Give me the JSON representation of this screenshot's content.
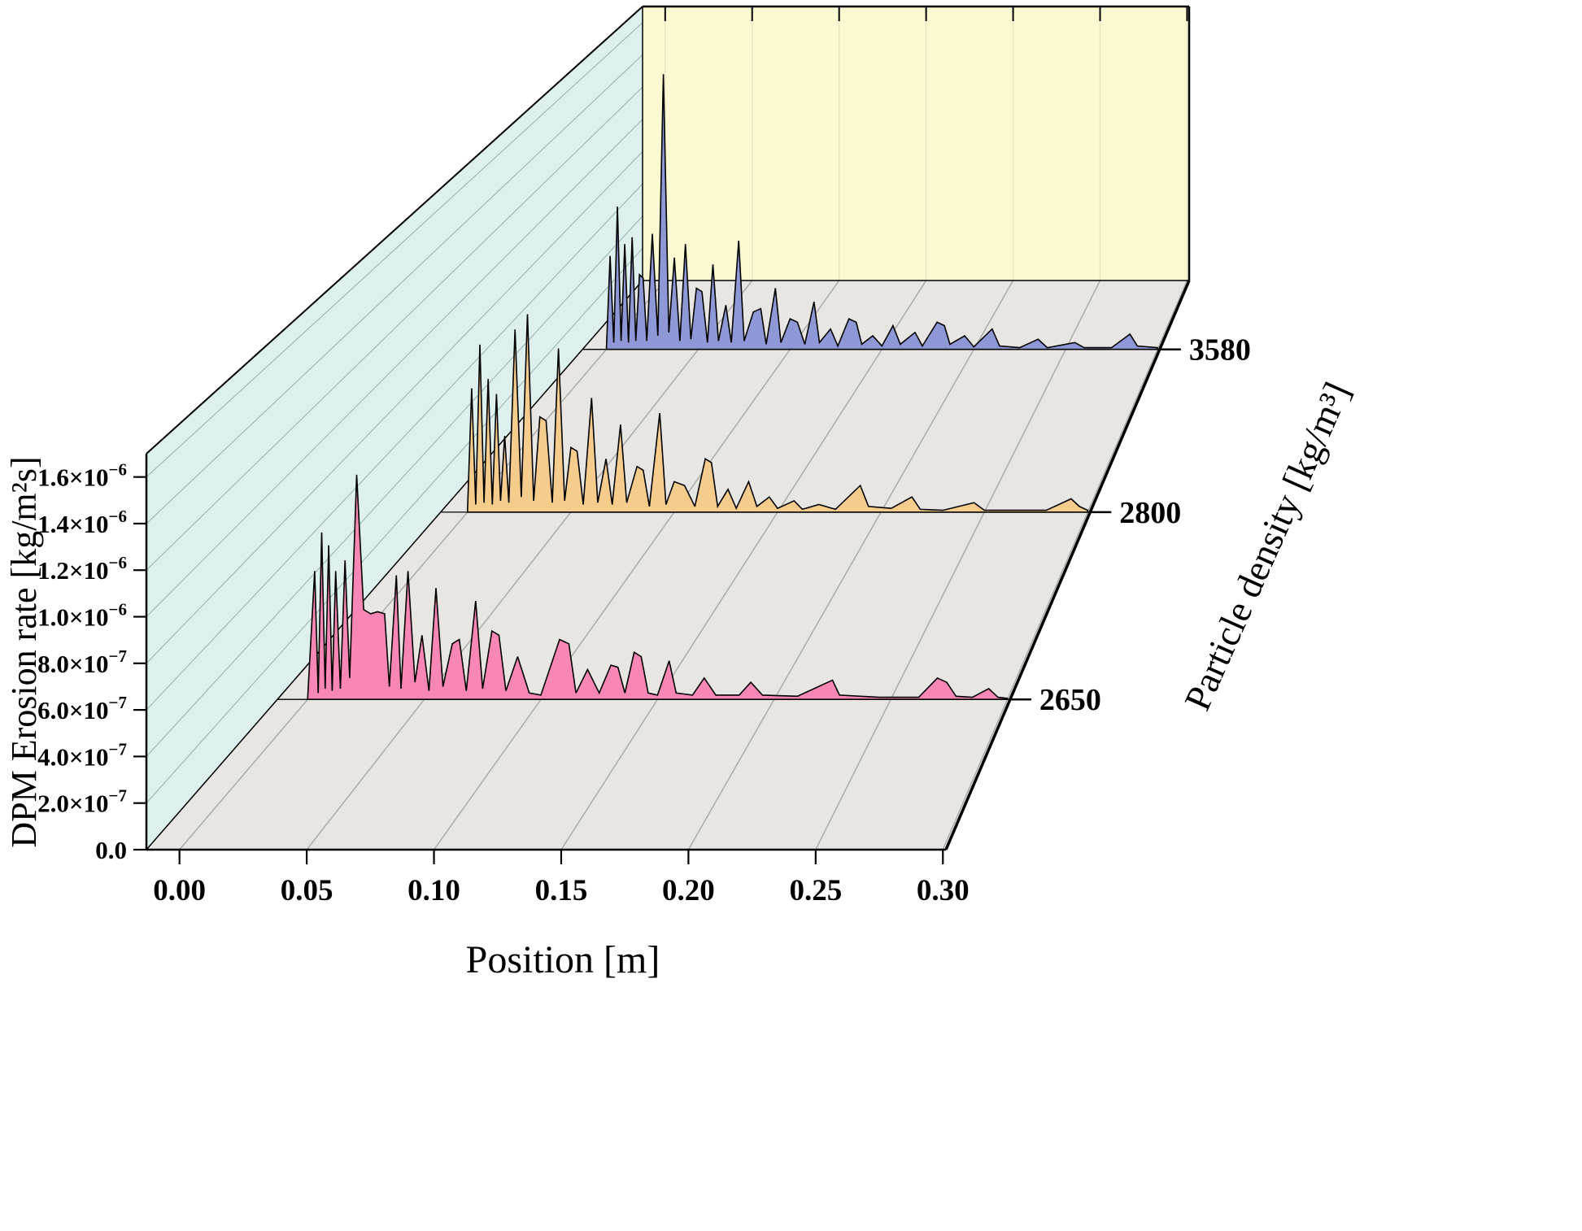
{
  "page": {
    "background": "#ffffff"
  },
  "chart_data": {
    "type": "area",
    "variant": "3d-waterfall",
    "title": "",
    "xlabel": "Position [m]",
    "ylabel": "Particle density [kg/m³]",
    "zlabel": "DPM Erosion rate [kg/m²s]",
    "xlim": [
      -0.013,
      0.3012
    ],
    "zlim": [
      0,
      1.7e-06
    ],
    "grid": true,
    "legend": "none",
    "value_scale": 1e-07,
    "value_unit": "kg/m²s",
    "x_axis": {
      "title": "Position [m]",
      "ticks": [
        {
          "label": "0.00",
          "value": 0.0
        },
        {
          "label": "0.05",
          "value": 0.05
        },
        {
          "label": "0.10",
          "value": 0.1
        },
        {
          "label": "0.15",
          "value": 0.15
        },
        {
          "label": "0.20",
          "value": 0.2
        },
        {
          "label": "0.25",
          "value": 0.25
        },
        {
          "label": "0.30",
          "value": 0.3
        }
      ]
    },
    "z_axis": {
      "title": "DPM Erosion rate [kg/m²s]",
      "ticks": [
        {
          "label": "0.0",
          "base": "0.0",
          "sup": "",
          "value": 0
        },
        {
          "label": "2.0×10⁻⁷",
          "base": "2.0×10",
          "sup": "−7",
          "value": 2e-07
        },
        {
          "label": "4.0×10⁻⁷",
          "base": "4.0×10",
          "sup": "−7",
          "value": 4e-07
        },
        {
          "label": "6.0×10⁻⁷",
          "base": "6.0×10",
          "sup": "−7",
          "value": 6e-07
        },
        {
          "label": "8.0×10⁻⁷",
          "base": "8.0×10",
          "sup": "−7",
          "value": 8e-07
        },
        {
          "label": "1.0×10⁻⁶",
          "base": "1.0×10",
          "sup": "−6",
          "value": 1e-06
        },
        {
          "label": "1.2×10⁻⁶",
          "base": "1.2×10",
          "sup": "−6",
          "value": 1.2e-06
        },
        {
          "label": "1.4×10⁻⁶",
          "base": "1.4×10",
          "sup": "−6",
          "value": 1.4e-06
        },
        {
          "label": "1.6×10⁻⁶",
          "base": "1.6×10",
          "sup": "−6",
          "value": 1.6e-06
        }
      ]
    },
    "depth_axis": {
      "title": "Particle density [kg/m³]",
      "tick_labels": [
        "2650",
        "2800",
        "3580"
      ]
    },
    "colors": {
      "left_wall": "#DEF0ED",
      "back_wall": "#FAF9D2",
      "floor": "#E7E6E3",
      "grid": "#ABABAB",
      "wall_grid": "#9FB9B6",
      "outline": "#000000"
    },
    "series": [
      {
        "label": "2650",
        "density": 2650,
        "color": "#F987B5",
        "x": [
          0.0,
          0.003,
          0.0045,
          0.006,
          0.0075,
          0.009,
          0.0105,
          0.012,
          0.014,
          0.016,
          0.018,
          0.021,
          0.024,
          0.027,
          0.03,
          0.033,
          0.035,
          0.038,
          0.04,
          0.043,
          0.046,
          0.049,
          0.052,
          0.055,
          0.058,
          0.062,
          0.065,
          0.068,
          0.072,
          0.075,
          0.079,
          0.082,
          0.085,
          0.09,
          0.095,
          0.1,
          0.108,
          0.112,
          0.115,
          0.12,
          0.125,
          0.13,
          0.133,
          0.136,
          0.14,
          0.143,
          0.146,
          0.15,
          0.155,
          0.158,
          0.165,
          0.17,
          0.175,
          0.185,
          0.19,
          0.195,
          0.21,
          0.225,
          0.228,
          0.245,
          0.262,
          0.27,
          0.274,
          0.278,
          0.285,
          0.292,
          0.296,
          0.3
        ],
        "values": [
          0.1,
          6.0,
          0.3,
          7.8,
          0.5,
          7.2,
          0.4,
          6.0,
          0.5,
          6.5,
          1.0,
          10.5,
          4.2,
          4.0,
          4.1,
          4.0,
          0.6,
          5.8,
          0.5,
          6.0,
          0.8,
          3.0,
          0.4,
          5.2,
          0.6,
          2.6,
          2.8,
          0.4,
          4.6,
          0.5,
          3.2,
          3.0,
          0.4,
          2.0,
          0.3,
          0.2,
          2.8,
          2.6,
          0.3,
          1.4,
          0.3,
          1.6,
          1.5,
          0.3,
          2.2,
          2.0,
          0.3,
          0.2,
          1.8,
          0.3,
          0.2,
          1.0,
          0.2,
          0.2,
          0.8,
          0.2,
          0.15,
          0.9,
          0.2,
          0.1,
          0.1,
          1.0,
          0.8,
          0.15,
          0.1,
          0.5,
          0.1,
          0.05
        ]
      },
      {
        "label": "2800",
        "density": 2800,
        "color": "#F6CC8D",
        "x": [
          0.0,
          0.002,
          0.004,
          0.006,
          0.008,
          0.01,
          0.012,
          0.014,
          0.016,
          0.018,
          0.02,
          0.023,
          0.026,
          0.029,
          0.032,
          0.035,
          0.038,
          0.041,
          0.044,
          0.047,
          0.05,
          0.053,
          0.056,
          0.06,
          0.063,
          0.067,
          0.07,
          0.074,
          0.077,
          0.082,
          0.085,
          0.088,
          0.093,
          0.096,
          0.1,
          0.105,
          0.11,
          0.115,
          0.118,
          0.121,
          0.126,
          0.13,
          0.136,
          0.14,
          0.146,
          0.15,
          0.158,
          0.162,
          0.17,
          0.178,
          0.19,
          0.194,
          0.205,
          0.215,
          0.219,
          0.23,
          0.245,
          0.25,
          0.265,
          0.28,
          0.292,
          0.296,
          0.3
        ],
        "values": [
          0.1,
          6.5,
          0.4,
          8.8,
          0.5,
          7.0,
          0.4,
          6.2,
          0.6,
          4.0,
          0.5,
          9.6,
          0.8,
          10.4,
          0.6,
          5.0,
          4.8,
          0.5,
          8.6,
          0.6,
          3.4,
          3.2,
          0.4,
          6.0,
          0.5,
          2.8,
          0.4,
          4.6,
          0.5,
          2.4,
          2.2,
          0.3,
          5.2,
          0.4,
          1.6,
          1.4,
          0.3,
          2.8,
          2.6,
          0.3,
          1.2,
          0.2,
          1.6,
          0.3,
          0.8,
          0.2,
          0.6,
          0.15,
          0.4,
          0.15,
          1.4,
          0.3,
          0.2,
          0.8,
          0.15,
          0.1,
          0.5,
          0.1,
          0.1,
          0.1,
          0.7,
          0.3,
          0.1
        ]
      },
      {
        "label": "3580",
        "density": 3580,
        "color": "#8F98D7",
        "x": [
          0.0,
          0.002,
          0.004,
          0.006,
          0.008,
          0.01,
          0.012,
          0.014,
          0.016,
          0.018,
          0.02,
          0.022,
          0.025,
          0.028,
          0.031,
          0.034,
          0.037,
          0.04,
          0.043,
          0.046,
          0.049,
          0.052,
          0.055,
          0.058,
          0.061,
          0.065,
          0.068,
          0.072,
          0.075,
          0.08,
          0.084,
          0.087,
          0.092,
          0.095,
          0.1,
          0.104,
          0.108,
          0.113,
          0.116,
          0.122,
          0.126,
          0.132,
          0.136,
          0.139,
          0.145,
          0.15,
          0.156,
          0.16,
          0.168,
          0.172,
          0.18,
          0.184,
          0.187,
          0.195,
          0.2,
          0.21,
          0.214,
          0.225,
          0.235,
          0.24,
          0.255,
          0.26,
          0.275,
          0.285,
          0.289,
          0.3
        ],
        "values": [
          0.1,
          5.5,
          0.4,
          8.4,
          0.5,
          6.2,
          0.4,
          6.6,
          0.5,
          4.4,
          4.2,
          0.5,
          6.8,
          0.8,
          16.2,
          1.0,
          5.4,
          0.5,
          6.2,
          0.6,
          3.6,
          3.4,
          0.4,
          5.0,
          0.5,
          2.6,
          0.4,
          6.4,
          0.5,
          2.2,
          2.4,
          0.3,
          3.6,
          0.4,
          1.8,
          1.6,
          0.3,
          2.8,
          0.4,
          1.2,
          0.2,
          1.8,
          1.6,
          0.3,
          0.8,
          0.2,
          1.4,
          0.3,
          1.0,
          0.2,
          1.6,
          1.4,
          0.3,
          0.8,
          0.15,
          1.2,
          0.2,
          0.1,
          0.6,
          0.1,
          0.4,
          0.1,
          0.1,
          0.9,
          0.2,
          0.1
        ]
      }
    ]
  }
}
